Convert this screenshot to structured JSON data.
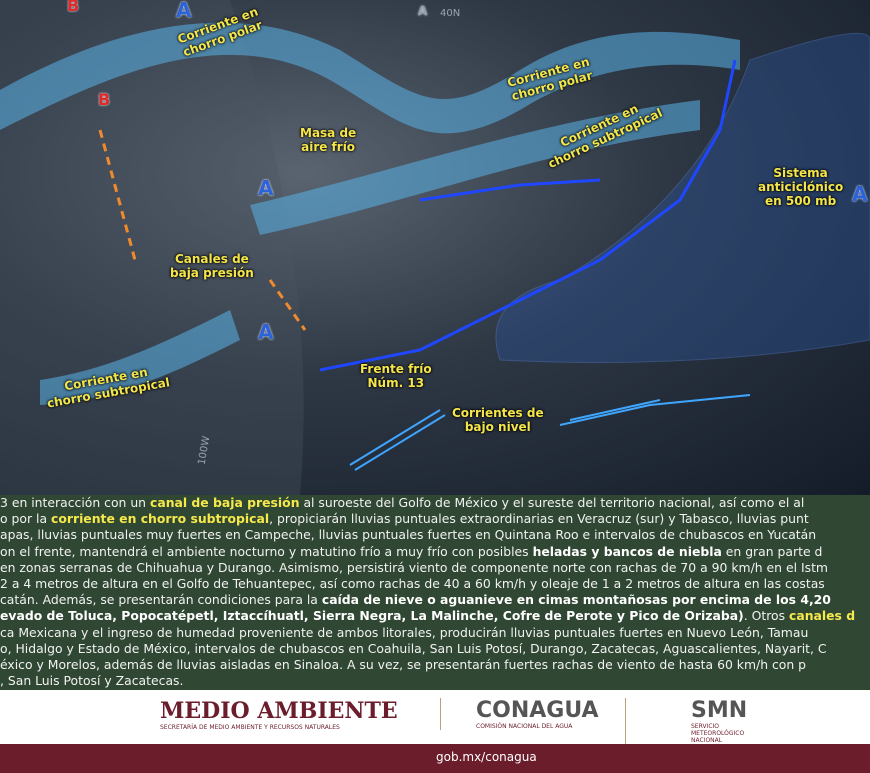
{
  "map": {
    "labels": {
      "polar_jet_west": "Corriente en\nchorro polar",
      "polar_jet_east": "Corriente en\nchorro polar",
      "subtropical_jet_east": "Corriente en\nchorro subtropical",
      "subtropical_jet_west": "Corriente en\nchorro subtropical",
      "cold_air_mass": "Masa de\naire frío",
      "low_pressure_channels": "Canales de\nbaja presión",
      "anticyclone": "Sistema\nanticiclónico\nen 500 mb",
      "cold_front": "Frente  frío\nNúm. 13",
      "low_level_currents": "Corrientes de\nbajo nivel"
    },
    "pressure_centers": [
      "A",
      "A",
      "A",
      "A",
      "A",
      "B",
      "B"
    ],
    "grid_labels": [
      "40N",
      "100W"
    ]
  },
  "text": {
    "lines": [
      [
        {
          "text": "3 en interacción con un "
        },
        {
          "text": "canal de baja presión",
          "em": "yellow"
        },
        {
          "text": " al suroeste del Golfo de México y el sureste del territorio nacional, así como el al"
        }
      ],
      [
        {
          "text": "o por la "
        },
        {
          "text": "corriente en chorro subtropical",
          "em": "yellow"
        },
        {
          "text": ", propiciarán lluvias puntuales extraordinarias en Veracruz (sur) y Tabasco, lluvias punt"
        }
      ],
      [
        {
          "text": "apas, lluvias puntuales muy fuertes en Campeche, lluvias puntuales fuertes en Quintana Roo e intervalos de chubascos en Yucatán"
        }
      ],
      [
        {
          "text": "on el frente, mantendrá el ambiente nocturno y matutino frío a muy frío con posibles "
        },
        {
          "text": "heladas y bancos de niebla",
          "em": "bold"
        },
        {
          "text": " en gran parte d"
        }
      ],
      [
        {
          "text": "en zonas serranas de Chihuahua y Durango. Asimismo, persistirá viento de componente norte con rachas de 70 a 90 km/h en el Istm"
        }
      ],
      [
        {
          "text": "2 a 4 metros de altura en el Golfo de Tehuantepec, así como rachas de 40 a 60 km/h y oleaje de 1 a 2 metros de altura en las costas"
        }
      ],
      [
        {
          "text": "catán. Además, se presentarán condiciones para la "
        },
        {
          "text": "caída de nieve o aguanieve en cimas montañosas por encima de los 4,20",
          "em": "bold"
        }
      ],
      [
        {
          "text": "evado de Toluca, Popocatépetl, Iztaccíhuatl, Sierra Negra, La Malinche, Cofre de Perote y Pico de Orizaba)",
          "em": "bold"
        },
        {
          "text": ". Otros "
        },
        {
          "text": "canales d",
          "em": "yellow"
        }
      ],
      [
        {
          "text": "ca Mexicana y el ingreso de humedad proveniente de ambos litorales, producirán lluvias puntuales fuertes en Nuevo León, Tamau"
        }
      ],
      [
        {
          "text": "o, Hidalgo y Estado de México, intervalos de chubascos en Coahuila, San Luis Potosí, Durango, Zacatecas, Aguascalientes, Nayarit, C"
        }
      ],
      [
        {
          "text": "éxico y Morelos, además de lluvias aisladas en Sinaloa. A su vez, se presentarán fuertes rachas de viento de hasta 60 km/h con p"
        }
      ],
      [
        {
          "text": ", San Luis Potosí y Zacatecas."
        }
      ]
    ]
  },
  "footer": {
    "semarnat": {
      "title": "MEDIO AMBIENTE",
      "subtitle": "SECRETARÍA DE MEDIO AMBIENTE Y RECURSOS NATURALES"
    },
    "conagua": {
      "title": "CONAGUA",
      "subtitle": "COMISIÓN NACIONAL DEL AGUA"
    },
    "smn": {
      "title": "SMN",
      "subtitle": "SERVICIO\nMETEOROLÓGICO\nNACIONAL"
    },
    "url": "gob.mx/conagua"
  }
}
